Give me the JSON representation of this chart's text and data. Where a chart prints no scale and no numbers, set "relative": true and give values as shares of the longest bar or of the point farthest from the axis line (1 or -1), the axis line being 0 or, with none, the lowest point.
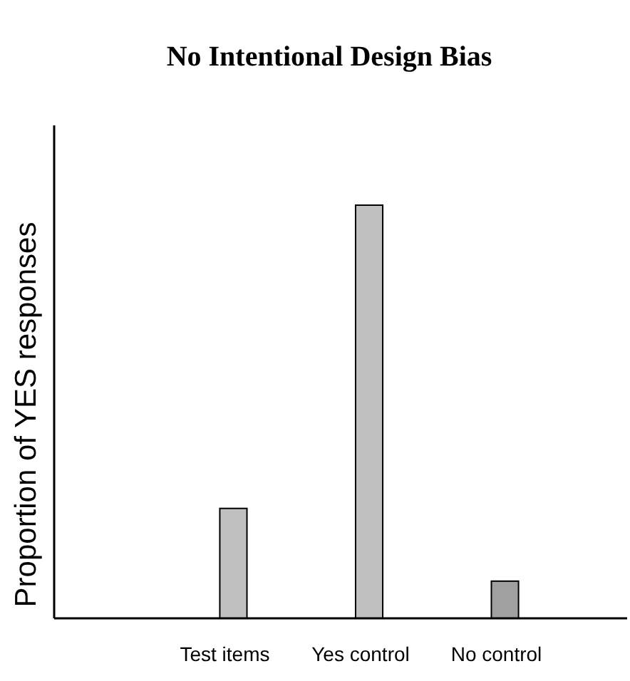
{
  "chart_data": {
    "type": "bar",
    "title": "No Intentional Design Bias",
    "ylabel": "Proportion of YES responses",
    "relative": true,
    "categories": [
      "Test items",
      "Yes control",
      "No control"
    ],
    "values": [
      0.266,
      1,
      0.09
    ],
    "colors": [
      "#c0c0c0",
      "#c0c0c0",
      "#a0a0a0"
    ]
  }
}
